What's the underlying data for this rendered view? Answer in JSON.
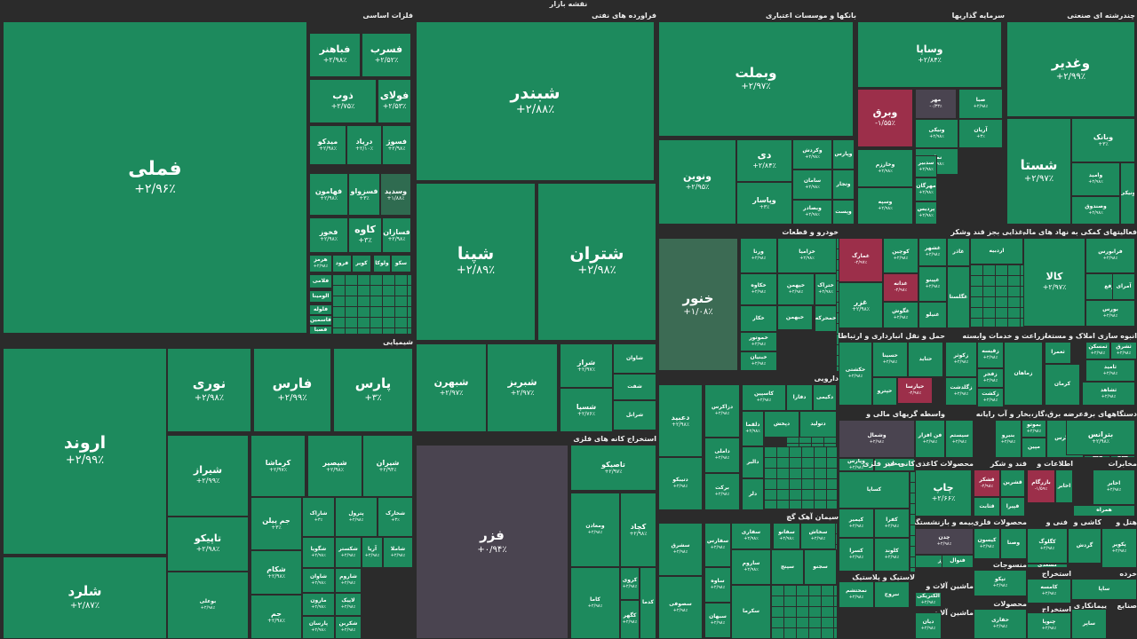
{
  "page_title": "نقشه بازار",
  "sectors": [
    {
      "label": "فلزات اساسی",
      "tiles": [
        {
          "n": "فملی",
          "v": "+۲/۹۶٪"
        },
        {
          "n": "فسرب",
          "v": "+۲/۵۲٪"
        },
        {
          "n": "فباهنر",
          "v": "+۲/۹۸٪"
        },
        {
          "n": "فولای",
          "v": "+۲/۵۳٪"
        },
        {
          "n": "ذوب",
          "v": "+۲/۷۵٪"
        },
        {
          "n": "فسوژ",
          "v": "+۲/۹۸٪"
        },
        {
          "n": "دریاد",
          "v": "+۲/۱۰٪"
        },
        {
          "n": "میدکو",
          "v": "+۲/۹۸٪"
        },
        {
          "n": "وسدید",
          "v": "+۱/۸۸٪"
        },
        {
          "n": "فسزواو",
          "v": "+۳٪"
        },
        {
          "n": "فهامون",
          "v": "+۲/۹۸٪"
        },
        {
          "n": "فسازان",
          "v": "+۲/۹۸٪"
        },
        {
          "n": "کاوه",
          "v": "+۳٪"
        },
        {
          "n": "فخوز",
          "v": "+۲/۹۸٪"
        },
        {
          "n": "هرمز",
          "v": "+۲/۹۸٪"
        },
        {
          "n": "فرود",
          "v": ""
        },
        {
          "n": "کویر",
          "v": ""
        },
        {
          "n": "ولوکا",
          "v": ""
        },
        {
          "n": "سکو",
          "v": ""
        },
        {
          "n": "فلامی",
          "v": ""
        },
        {
          "n": "الومینا",
          "v": ""
        },
        {
          "n": "فلوله",
          "v": ""
        },
        {
          "n": "فاسمین",
          "v": ""
        },
        {
          "n": "فصبا",
          "v": ""
        }
      ]
    },
    {
      "label": "فراورده های نفتی",
      "tiles": [
        {
          "n": "شبندر",
          "v": "+۲/۸۸٪"
        },
        {
          "n": "شپنا",
          "v": "+۲/۸۹٪"
        },
        {
          "n": "شتران",
          "v": "+۲/۹۸٪"
        },
        {
          "n": "شبهرن",
          "v": "+۲/۹۷٪"
        },
        {
          "n": "شبریز",
          "v": "+۲/۹۷٪"
        },
        {
          "n": "شراز",
          "v": "+۲/۹۷٪"
        },
        {
          "n": "شسپا",
          "v": "+۲/۷۶٪"
        },
        {
          "n": "شاوان",
          "v": ""
        },
        {
          "n": "شفت",
          "v": ""
        },
        {
          "n": "شرانل",
          "v": ""
        }
      ]
    },
    {
      "label": "بانکها و موسسات اعتباری",
      "tiles": [
        {
          "n": "وبملت",
          "v": "+۲/۹۷٪"
        },
        {
          "n": "ونوین",
          "v": "+۲/۹۵٪"
        },
        {
          "n": "دی",
          "v": "+۲/۸۴٪"
        },
        {
          "n": "وپاسار",
          "v": "+۳٪"
        },
        {
          "n": "وکردش",
          "v": "+۲/۹۸٪"
        },
        {
          "n": "وپارس",
          "v": ""
        },
        {
          "n": "سامان",
          "v": "+۲/۹۸٪"
        },
        {
          "n": "وتجار",
          "v": ""
        },
        {
          "n": "وبصادر",
          "v": "+۲/۹۸٪"
        },
        {
          "n": "وپست",
          "v": ""
        }
      ]
    },
    {
      "label": "سرمایه گذاریها",
      "tiles": [
        {
          "n": "وساپا",
          "v": "+۲/۸۴٪"
        },
        {
          "n": "وبرق",
          "v": "-۱/۵۵٪"
        },
        {
          "n": "مهر",
          "v": "-۰/۳۳٪"
        },
        {
          "n": "صبا",
          "v": "+۲/۹۸٪"
        },
        {
          "n": "ونیکی",
          "v": "+۲/۹۸٪"
        },
        {
          "n": "نماد",
          "v": "+۲/۹۸٪"
        },
        {
          "n": "آریان",
          "v": "+۳٪"
        },
        {
          "n": "وخارزم",
          "v": "+۲/۹۸٪"
        },
        {
          "n": "سدبیر",
          "v": "+۲/۹۸٪"
        },
        {
          "n": "وسپه",
          "v": "+۲/۹۸٪"
        },
        {
          "n": "مهرگان",
          "v": "+۲/۹۸٪"
        },
        {
          "n": "پردیس",
          "v": "+۲/۹۸٪"
        }
      ]
    },
    {
      "label": "چندرشته ای صنعتی",
      "tiles": [
        {
          "n": "وغدیر",
          "v": "+۲/۹۹٪"
        },
        {
          "n": "شستا",
          "v": "+۲/۹۷٪"
        },
        {
          "n": "وبانک",
          "v": "+۳٪"
        },
        {
          "n": "وامید",
          "v": "+۲/۹۸٪"
        },
        {
          "n": "وصندوق",
          "v": "+۲/۹۸٪"
        },
        {
          "n": "ونیکی",
          "v": ""
        }
      ]
    },
    {
      "label": "شیمیایی",
      "tiles": [
        {
          "n": "اروند",
          "v": "+۲/۹۹٪"
        },
        {
          "n": "شلرد",
          "v": "+۲/۸۷٪"
        },
        {
          "n": "نوری",
          "v": "+۲/۹۸٪"
        },
        {
          "n": "فارس",
          "v": "+۲/۹۹٪"
        },
        {
          "n": "پارس",
          "v": "+۳٪"
        },
        {
          "n": "شیراز",
          "v": "+۲/۹۹٪"
        },
        {
          "n": "تاپیکو",
          "v": "+۲/۹۸٪"
        },
        {
          "n": "بوعلی",
          "v": "+۲/۹۸٪"
        },
        {
          "n": "کرماشا",
          "v": "+۲/۹۷٪"
        },
        {
          "n": "شپصیر",
          "v": "+۲/۹۸٪"
        },
        {
          "n": "شیران",
          "v": "+۲/۹۴٪"
        },
        {
          "n": "جم پیلن",
          "v": "+۳٪"
        },
        {
          "n": "شاراک",
          "v": "+۳٪"
        },
        {
          "n": "پترول",
          "v": "+۲/۹۸٪"
        },
        {
          "n": "شخارک",
          "v": "+۳٪"
        },
        {
          "n": "شکام",
          "v": "+۲/۹۸٪"
        },
        {
          "n": "جم",
          "v": "+۲/۹۸٪"
        },
        {
          "n": "شگویا",
          "v": "+۲/۹۸٪"
        },
        {
          "n": "شکستر",
          "v": "+۲/۹۸٪"
        },
        {
          "n": "آریا",
          "v": "+۲/۹۸٪"
        },
        {
          "n": "شاملا",
          "v": "+۲/۹۸٪"
        },
        {
          "n": "شاوان",
          "v": "+۲/۹۸٪"
        },
        {
          "n": "مارون",
          "v": "+۲/۹۸٪"
        },
        {
          "n": "شاروم",
          "v": "+۲/۹۸٪"
        },
        {
          "n": "لاپیک",
          "v": "+۲/۹۸٪"
        },
        {
          "n": "پارسان",
          "v": "+۲/۹۸٪"
        },
        {
          "n": "شکربن",
          "v": "+۲/۹۸٪"
        }
      ]
    },
    {
      "label": "استخراج کانه های فلزی",
      "tiles": [
        {
          "n": "فزر",
          "v": "+۰/۹۴٪"
        },
        {
          "n": "تاصیکو",
          "v": "+۲/۹۷٪"
        },
        {
          "n": "ومعادن",
          "v": "+۲/۹۸٪"
        },
        {
          "n": "کچاد",
          "v": "+۲/۹۸٪"
        },
        {
          "n": "کاما",
          "v": "+۲/۹۸٪"
        },
        {
          "n": "کروی",
          "v": "+۲/۹۸٪"
        },
        {
          "n": "کگهر",
          "v": "+۲/۹۸٪"
        },
        {
          "n": "کدما",
          "v": ""
        }
      ]
    },
    {
      "label": "خودرو و قطعات",
      "tiles": [
        {
          "n": "خنور",
          "v": "+۱/۰۸٪"
        },
        {
          "n": "ورنا",
          "v": "+۲/۹۸٪"
        },
        {
          "n": "خزامیا",
          "v": "+۲/۹۸٪"
        },
        {
          "n": "خکاوه",
          "v": "+۲/۹۸٪"
        },
        {
          "n": "خپهمن",
          "v": "+۲/۹۸٪"
        },
        {
          "n": "ختراک",
          "v": "+۲/۹۸٪"
        },
        {
          "n": "خبهمن",
          "v": ""
        },
        {
          "n": "خکار",
          "v": ""
        },
        {
          "n": "خمحرکه",
          "v": ""
        },
        {
          "n": "خموتور",
          "v": "+۲/۹۸٪"
        },
        {
          "n": "خبنیان",
          "v": "+۲/۹۸٪"
        }
      ]
    },
    {
      "label": "غذایی بجز قند وشکر",
      "tiles": [
        {
          "n": "غمارگ",
          "v": "-۲/۹۷٪"
        },
        {
          "n": "غزر",
          "v": "+۲/۹۸٪"
        },
        {
          "n": "کوچین",
          "v": "+۲/۹۸٪"
        },
        {
          "n": "غشهر",
          "v": "+۲/۹۸٪"
        },
        {
          "n": "غاذر",
          "v": ""
        },
        {
          "n": "غدانه",
          "v": "-۲/۹۸٪"
        },
        {
          "n": "غگوش",
          "v": "+۲/۹۸٪"
        },
        {
          "n": "غپینو",
          "v": "+۲/۹۸٪"
        },
        {
          "n": "غنیلو",
          "v": ""
        },
        {
          "n": "غگلستا",
          "v": ""
        }
      ]
    },
    {
      "label": "فعالیتهای کمکی به نهاد های مالی واسط",
      "tiles": [
        {
          "n": "کالا",
          "v": "+۲/۹۷٪"
        },
        {
          "n": "فرابورس",
          "v": "+۲/۹۸٪"
        },
        {
          "n": "ارفع",
          "v": ""
        },
        {
          "n": "اردبیه",
          "v": ""
        },
        {
          "n": "بورس",
          "v": "+۲/۹۸٪"
        },
        {
          "n": "آمرای",
          "v": ""
        }
      ]
    },
    {
      "label": "دارویی",
      "tiles": [
        {
          "n": "دعبید",
          "v": "+۲/۹۸٪"
        },
        {
          "n": "دزاکرس",
          "v": "+۲/۹۸٪"
        },
        {
          "n": "کاسپین",
          "v": "+۲/۹۸٪"
        },
        {
          "n": "دلقما",
          "v": "+۲/۹۸٪"
        },
        {
          "n": "دتیبکو",
          "v": "+۲/۹۸٪"
        },
        {
          "n": "داملی",
          "v": "+۲/۹۸٪"
        },
        {
          "n": "برکت",
          "v": "+۲/۹۸٪"
        },
        {
          "n": "دفارا",
          "v": ""
        },
        {
          "n": "دپخش",
          "v": ""
        },
        {
          "n": "دکیمی",
          "v": ""
        },
        {
          "n": "دالبر",
          "v": ""
        },
        {
          "n": "دلر",
          "v": ""
        },
        {
          "n": "دتولید",
          "v": ""
        }
      ]
    },
    {
      "label": "حمل و نقل انبارداری و ارتباطات",
      "tiles": [
        {
          "n": "حکشتی",
          "v": "+۲/۹۸٪"
        },
        {
          "n": "حسینا",
          "v": "+۲/۹۸٪"
        },
        {
          "n": "حتاید",
          "v": ""
        },
        {
          "n": "حیارسا",
          "v": "-۲/۹۸٪"
        },
        {
          "n": "حپترو",
          "v": ""
        }
      ]
    },
    {
      "label": "زراعت و خدمات وابسته",
      "tiles": [
        {
          "n": "زکوثر",
          "v": "+۲/۹۸٪"
        },
        {
          "n": "زقیسه",
          "v": "+۲/۹۸٪"
        },
        {
          "n": "زفجر",
          "v": "+۲/۹۸٪"
        },
        {
          "n": "زگلدشت",
          "v": "+۲/۹۸٪"
        },
        {
          "n": "زکشت",
          "v": "+۲/۹۸٪"
        },
        {
          "n": "زماهان",
          "v": ""
        }
      ]
    },
    {
      "label": "انبوه سازی املاک و مستغلات",
      "tiles": [
        {
          "n": "ثشرق",
          "v": "+۲/۹۸٪"
        },
        {
          "n": "ثامید",
          "v": "+۲/۹۸٪"
        },
        {
          "n": "ثعمرا",
          "v": ""
        },
        {
          "n": "ثمسکن",
          "v": "+۲/۹۸٪"
        },
        {
          "n": "ثشاهد",
          "v": "+۲/۹۸٪"
        },
        {
          "n": "کرمان",
          "v": ""
        }
      ]
    },
    {
      "label": "سیمان آهک گچ",
      "tiles": [
        {
          "n": "سشرق",
          "v": "+۲/۹۸٪"
        },
        {
          "n": "سفارس",
          "v": "+۲/۹۸٪"
        },
        {
          "n": "سخاش",
          "v": "+۲/۹۸٪"
        },
        {
          "n": "سفانو",
          "v": "+۲/۹۸٪"
        },
        {
          "n": "ساوه",
          "v": "+۲/۹۸٪"
        },
        {
          "n": "ساروم",
          "v": "+۲/۹۸٪"
        },
        {
          "n": "سبهان",
          "v": "+۲/۹۸٪"
        },
        {
          "n": "سصوفی",
          "v": "+۲/۹۸٪"
        },
        {
          "n": "سفاری",
          "v": "+۲/۹۸٪"
        },
        {
          "n": "سکرما",
          "v": ""
        },
        {
          "n": "سپنج",
          "v": ""
        },
        {
          "n": "سجنو",
          "v": ""
        }
      ]
    },
    {
      "label": "واسطه گریهای مالی و",
      "tiles": [
        {
          "n": "وشمال",
          "v": "+۲/۹۸٪"
        },
        {
          "n": "وپارس",
          "v": "+۲/۹۸٪"
        },
        {
          "n": "ومعادن",
          "v": ""
        }
      ]
    },
    {
      "label": "رایانه",
      "tiles": [
        {
          "n": "سیستم",
          "v": "+۲/۹۸٪"
        },
        {
          "n": "فن افزار",
          "v": "+۲/۹۸٪"
        },
        {
          "n": "مفاخر",
          "v": ""
        }
      ]
    },
    {
      "label": "عرضه برق،گاز،بخار و آب",
      "tiles": [
        {
          "n": "بموتو",
          "v": "+۲/۹۸٪"
        },
        {
          "n": "بنیرو",
          "v": "+۲/۹۸٪"
        },
        {
          "n": "مپین",
          "v": ""
        },
        {
          "n": "بزاگرس",
          "v": ""
        }
      ]
    },
    {
      "label": "دستگاههای برقی",
      "tiles": [
        {
          "n": "بترانس",
          "v": "+۲/۹۸٪"
        },
        {
          "n": "بالبر",
          "v": ""
        },
        {
          "n": "بکام",
          "v": ""
        }
      ]
    },
    {
      "label": "کانی غیر فلزی",
      "tiles": [
        {
          "n": "کیمیر",
          "v": "+۲/۹۸٪"
        },
        {
          "n": "کسرا",
          "v": "+۲/۹۸٪"
        },
        {
          "n": "کفرا",
          "v": "+۲/۹۸٪"
        },
        {
          "n": "کلوند",
          "v": "+۲/۹۸٪"
        },
        {
          "n": "کساپا",
          "v": ""
        }
      ]
    },
    {
      "label": "محصولات کاغذی",
      "tiles": [
        {
          "n": "چاپ",
          "v": "+۲/۶۶٪"
        },
        {
          "n": "چکارن",
          "v": ""
        },
        {
          "n": "چفیبر",
          "v": ""
        }
      ]
    },
    {
      "label": "قند و شکر",
      "tiles": [
        {
          "n": "قشکر",
          "v": "-۲/۹۸٪"
        },
        {
          "n": "قثابت",
          "v": ""
        },
        {
          "n": "قشرین",
          "v": ""
        },
        {
          "n": "قپیرا",
          "v": ""
        }
      ]
    },
    {
      "label": "اطلاعات و",
      "tiles": [
        {
          "n": "بازرگام",
          "v": "-۱/۵۹٪"
        },
        {
          "n": "اخابر",
          "v": ""
        }
      ]
    },
    {
      "label": "مخابرات",
      "tiles": [
        {
          "n": "اخابر",
          "v": "+۲/۹۸٪"
        },
        {
          "n": "همراه",
          "v": ""
        }
      ]
    },
    {
      "label": "بیمه و بازنشستگی",
      "tiles": [
        {
          "n": "دانا",
          "v": "-۱/۲۴٪"
        },
        {
          "n": "البرز",
          "v": ""
        },
        {
          "n": "وما",
          "v": ""
        }
      ]
    },
    {
      "label": "محصولات فلزی",
      "tiles": [
        {
          "n": "چدن",
          "v": "+۲/۹۸٪"
        },
        {
          "n": "فنوال",
          "v": ""
        }
      ]
    },
    {
      "label": "فنی و",
      "tiles": [
        {
          "n": "کیسون",
          "v": "+۲/۹۸٪"
        },
        {
          "n": "وصنا",
          "v": ""
        }
      ]
    },
    {
      "label": "کاشی و",
      "tiles": [
        {
          "n": "کگلوگ",
          "v": "+۲/۹۸٪"
        },
        {
          "n": "کسعدی",
          "v": ""
        }
      ]
    },
    {
      "label": "هتل و",
      "tiles": [
        {
          "n": "گردش",
          "v": ""
        }
      ]
    },
    {
      "label": "لاستیک و پلاستیک",
      "tiles": [
        {
          "n": "پکویر",
          "v": "+۲/۹۸٪"
        },
        {
          "n": "پلاست",
          "v": "+۲/۹۸٪"
        },
        {
          "n": "پکرمان",
          "v": "+۲/۹۸٪"
        }
      ]
    },
    {
      "label": "منسوجات",
      "tiles": [
        {
          "n": "نمحتشم",
          "v": "+۲/۹۸٪"
        },
        {
          "n": "نبروج",
          "v": ""
        }
      ]
    },
    {
      "label": "ماشین آلات و",
      "tiles": [
        {
          "n": "تپکو",
          "v": "+۲/۹۸٪"
        },
        {
          "n": "تکنو",
          "v": ""
        }
      ]
    },
    {
      "label": "ماشین آلات و",
      "tiles": [
        {
          "n": "الکتریکی",
          "v": "+۲/۹۸٪"
        }
      ]
    },
    {
      "label": "محصولات",
      "tiles": [
        {
          "n": "دیان",
          "v": "+۲/۹۸٪"
        }
      ]
    },
    {
      "label": "استخراج",
      "tiles": [
        {
          "n": "حفاری",
          "v": "+۲/۹۸٪"
        },
        {
          "n": "کتابک",
          "v": ""
        }
      ]
    },
    {
      "label": "استخراج",
      "tiles": [
        {
          "n": "کامسه",
          "v": "+۲/۹۸٪"
        }
      ]
    },
    {
      "label": "خرده",
      "tiles": [
        {
          "n": "چنوپا",
          "v": "+۲/۹۸٪"
        },
        {
          "n": "وسایا",
          "v": ""
        }
      ]
    },
    {
      "label": "پیمانکاری",
      "tiles": [
        {
          "n": "ساپا",
          "v": ""
        }
      ]
    },
    {
      "label": "صنایع",
      "tiles": [
        {
          "n": "ساپر",
          "v": ""
        }
      ]
    }
  ]
}
